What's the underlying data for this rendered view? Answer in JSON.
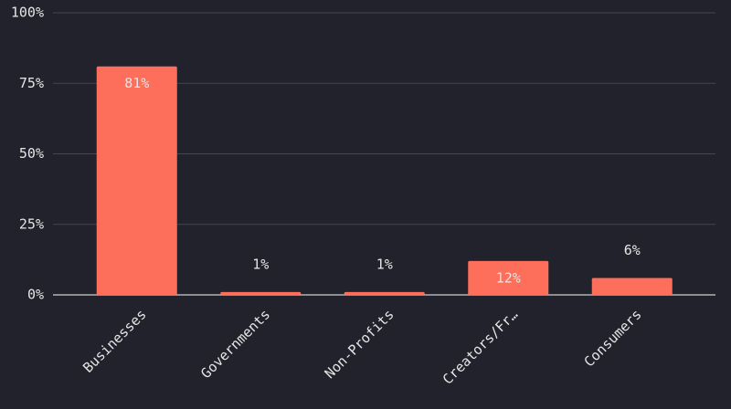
{
  "chart_data": {
    "type": "bar",
    "categories": [
      "Businesses",
      "Governments",
      "Non-Profits",
      "Creators/Fr…",
      "Consumers"
    ],
    "values": [
      81,
      1,
      1,
      12,
      6
    ],
    "value_labels": [
      "81%",
      "1%",
      "1%",
      "12%",
      "6%"
    ],
    "color": "#fd6f5a",
    "ylim": [
      0,
      100
    ],
    "yticks": [
      {
        "value": 0,
        "label": "0%"
      },
      {
        "value": 25,
        "label": "25%"
      },
      {
        "value": 50,
        "label": "50%"
      },
      {
        "value": 75,
        "label": "75%"
      },
      {
        "value": 100,
        "label": "100%"
      }
    ],
    "grid": true
  }
}
